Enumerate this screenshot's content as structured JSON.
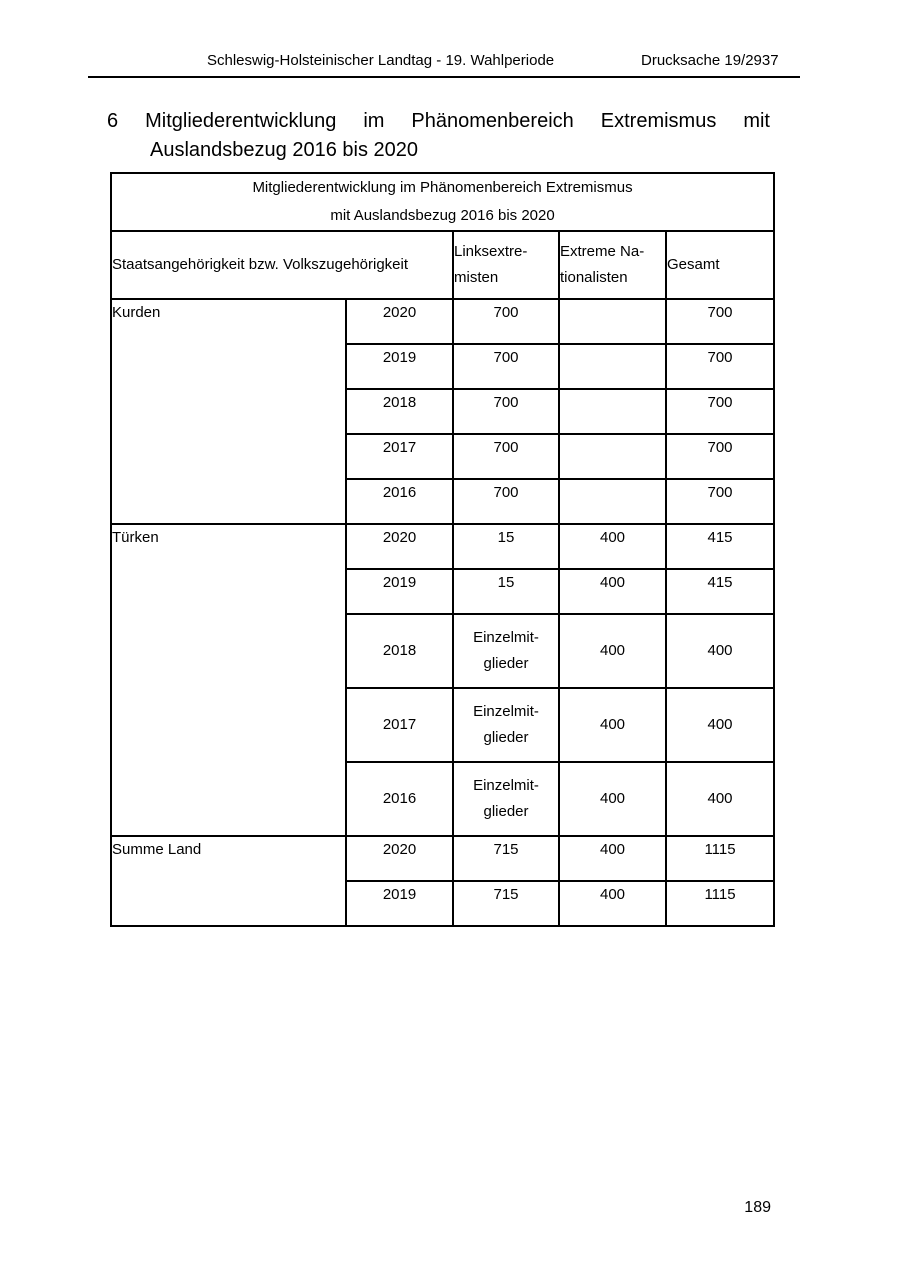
{
  "document": {
    "header": {
      "left": "Schleswig-Holsteinischer Landtag - 19. Wahlperiode",
      "right": "Drucksache 19/2937"
    },
    "heading": {
      "line1": "6 Mitgliederentwicklung im Phänomenbereich Extremismus mit",
      "line2": "Auslandsbezug 2016 bis 2020"
    },
    "page_number": "189"
  },
  "table": {
    "title": "Mitgliederentwicklung im Phänomenbereich Extremismus\nmit Auslandsbezug 2016 bis 2020",
    "headers": {
      "col_main": "Staatsangehörigkeit bzw. Volkszugehörigkeit",
      "col_links": "Linksextre-\nmisten",
      "col_extreme": "Extreme Na-\ntionalisten",
      "col_gesamt": "Gesamt"
    },
    "groups": [
      {
        "label": "Kurden",
        "rows": [
          [
            "2020",
            "700",
            "",
            "700"
          ],
          [
            "2019",
            "700",
            "",
            "700"
          ],
          [
            "2018",
            "700",
            "",
            "700"
          ],
          [
            "2017",
            "700",
            "",
            "700"
          ],
          [
            "2016",
            "700",
            "",
            "700"
          ]
        ]
      },
      {
        "label": "Türken",
        "rows": [
          [
            "2020",
            "15",
            "400",
            "415"
          ],
          [
            "2019",
            "15",
            "400",
            "415"
          ],
          [
            "2018",
            "Einzelmit-\nglieder",
            "400",
            "400"
          ],
          [
            "2017",
            "Einzelmit-\nglieder",
            "400",
            "400"
          ],
          [
            "2016",
            "Einzelmit-\nglieder",
            "400",
            "400"
          ]
        ]
      },
      {
        "label": "Summe Land",
        "rows": [
          [
            "2020",
            "715",
            "400",
            "1115"
          ],
          [
            "2019",
            "715",
            "400",
            "1115"
          ]
        ]
      }
    ]
  }
}
